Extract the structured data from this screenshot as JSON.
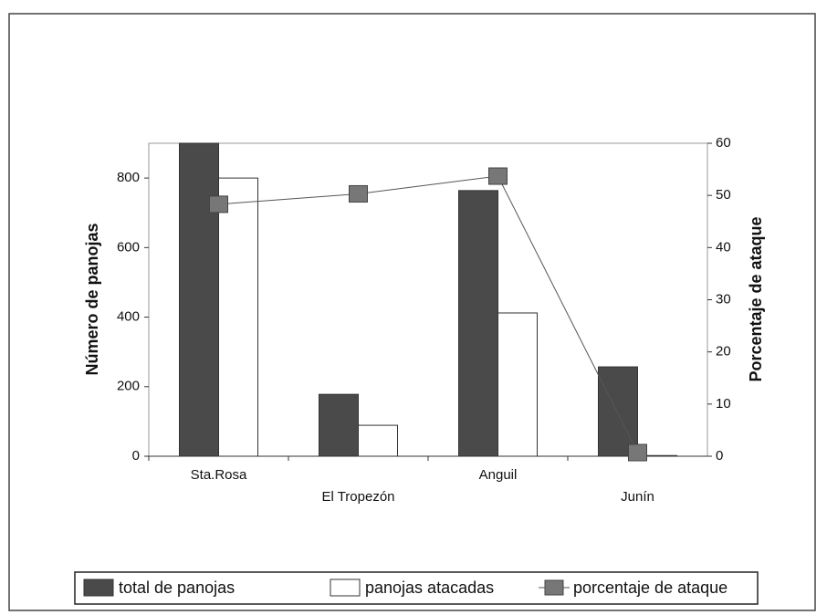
{
  "chart_data": {
    "type": "bar",
    "categories": [
      "Sta.Rosa",
      "El Tropezón",
      "Anguil",
      "Junín"
    ],
    "y_label": "Número de panojas",
    "y2_label": "Porcentaje de ataque",
    "ylim": [
      0,
      900
    ],
    "yticks": [
      0,
      200,
      400,
      600,
      800
    ],
    "y2lim": [
      0,
      60
    ],
    "y2ticks": [
      0,
      10,
      20,
      30,
      40,
      50,
      60
    ],
    "series": [
      {
        "name": "total de panojas",
        "type": "bar",
        "color": "#4a4a4a",
        "values": [
          900,
          178,
          764,
          257
        ]
      },
      {
        "name": "panojas atacadas",
        "type": "bar",
        "color": "#ffffff",
        "values": [
          800,
          89,
          412,
          2
        ]
      },
      {
        "name": "porcentaje de ataque",
        "type": "line",
        "axis": "y2",
        "color": "#777777",
        "values": [
          48.3,
          50.3,
          53.7,
          0.7
        ]
      }
    ]
  }
}
